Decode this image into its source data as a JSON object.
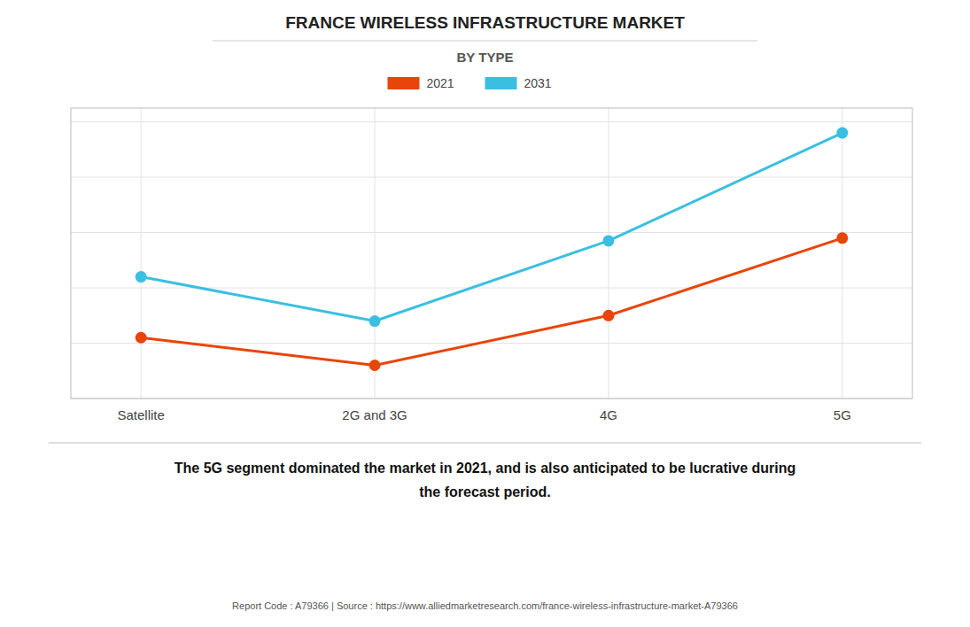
{
  "chart_data": {
    "type": "line",
    "title": "FRANCE WIRELESS INFRASTRUCTURE MARKET",
    "subtitle": "BY TYPE",
    "categories": [
      "Satellite",
      "2G and 3G",
      "4G",
      "5G"
    ],
    "series": [
      {
        "name": "2021",
        "color": "#e8450a",
        "values": [
          0.22,
          0.12,
          0.3,
          0.58
        ],
        "marker": "circle"
      },
      {
        "name": "2031",
        "color": "#3bbfe0",
        "values": [
          0.44,
          0.28,
          0.57,
          0.96
        ],
        "marker": "circle"
      }
    ],
    "ylim": [
      0,
      1.05
    ],
    "yticks": [
      0,
      0.2,
      0.4,
      0.6,
      0.8,
      1
    ],
    "grid": true,
    "tick_labels": "x",
    "legend": "top",
    "annotations": [
      "The 5G segment dominated the market in 2021, and is also anticipated to be lucrative during\nthe forecast period.",
      "Report Code : A79366  |  Source : https://www.alliedmarketresearch.com/france-wireless-infrastructure-market-A79366"
    ]
  }
}
